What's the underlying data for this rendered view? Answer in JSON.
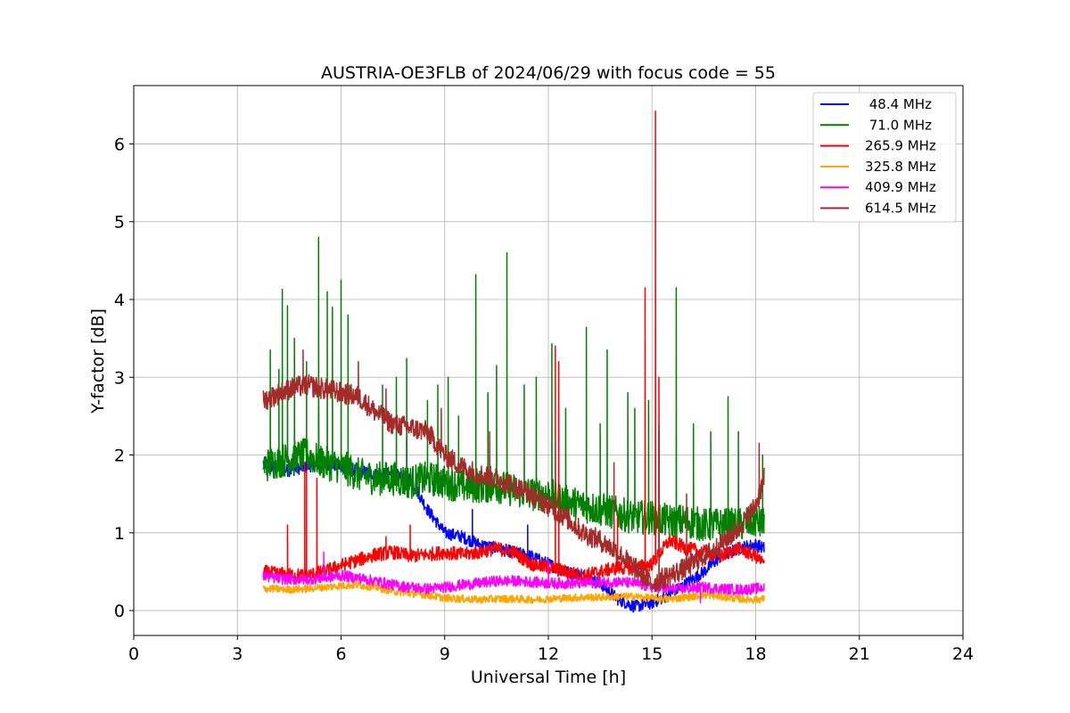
{
  "chart_data": {
    "type": "line",
    "title": "AUSTRIA-OE3FLB of 2024/06/29 with focus code = 55",
    "xlabel": "Universal Time [h]",
    "ylabel": "Y-factor [dB]",
    "xlim": [
      0,
      24
    ],
    "ylim": [
      -0.32,
      6.75
    ],
    "xticks": [
      0,
      3,
      6,
      9,
      12,
      15,
      18,
      21,
      24
    ],
    "yticks": [
      0,
      1,
      2,
      3,
      4,
      5,
      6
    ],
    "grid": true,
    "legend_position": "top-right",
    "series": [
      {
        "name": " 48.4 MHz",
        "color": "#0000ff",
        "x": [
          3.75,
          4,
          4.5,
          5,
          5.5,
          6,
          6.5,
          7,
          7.5,
          8,
          8.5,
          9,
          9.5,
          10,
          10.5,
          11,
          11.5,
          12,
          12.5,
          13,
          13.5,
          14,
          14.5,
          15,
          15.5,
          16,
          16.5,
          17,
          17.5,
          18,
          18.25
        ],
        "y": [
          1.9,
          1.85,
          1.8,
          1.85,
          1.9,
          1.85,
          1.8,
          1.75,
          1.75,
          1.7,
          1.3,
          1.0,
          0.95,
          0.85,
          0.8,
          0.75,
          0.7,
          0.6,
          0.5,
          0.45,
          0.35,
          0.15,
          0.05,
          0.1,
          0.2,
          0.35,
          0.5,
          0.7,
          0.8,
          0.85,
          0.8
        ],
        "spikes": [
          [
            5.35,
            2.6
          ],
          [
            7.9,
            2.2
          ],
          [
            9.8,
            1.3
          ],
          [
            11.4,
            1.1
          ]
        ]
      },
      {
        "name": " 71.0 MHz",
        "color": "#008000",
        "x": [
          3.75,
          4,
          4.5,
          5,
          5.5,
          6,
          6.5,
          7,
          7.5,
          8,
          8.5,
          9,
          9.5,
          10,
          10.5,
          11,
          11.5,
          12,
          12.5,
          13,
          13.5,
          14,
          14.5,
          15,
          15.5,
          16,
          16.5,
          17,
          17.5,
          18,
          18.25
        ],
        "y": [
          1.85,
          1.9,
          1.95,
          2.0,
          1.9,
          1.85,
          1.75,
          1.7,
          1.7,
          1.65,
          1.7,
          1.65,
          1.6,
          1.6,
          1.6,
          1.55,
          1.5,
          1.5,
          1.4,
          1.35,
          1.3,
          1.25,
          1.2,
          1.2,
          1.15,
          1.15,
          1.1,
          1.1,
          1.1,
          1.15,
          1.1
        ],
        "spikes": [
          [
            3.95,
            3.35
          ],
          [
            4.2,
            3.1
          ],
          [
            4.3,
            4.13
          ],
          [
            4.45,
            3.92
          ],
          [
            4.65,
            3.5
          ],
          [
            5.0,
            3.2
          ],
          [
            5.35,
            4.8
          ],
          [
            5.6,
            4.1
          ],
          [
            5.75,
            3.9
          ],
          [
            6.0,
            4.25
          ],
          [
            6.2,
            3.8
          ],
          [
            7.2,
            2.9
          ],
          [
            7.6,
            3.0
          ],
          [
            7.9,
            3.24
          ],
          [
            8.5,
            2.7
          ],
          [
            8.8,
            2.9
          ],
          [
            9.1,
            3.0
          ],
          [
            9.4,
            2.5
          ],
          [
            9.9,
            4.32
          ],
          [
            10.25,
            2.8
          ],
          [
            10.5,
            3.15
          ],
          [
            10.8,
            4.6
          ],
          [
            11.3,
            2.9
          ],
          [
            11.65,
            3.0
          ],
          [
            12.1,
            3.43
          ],
          [
            12.5,
            2.6
          ],
          [
            13.1,
            3.64
          ],
          [
            13.5,
            2.4
          ],
          [
            13.7,
            3.35
          ],
          [
            14.3,
            2.8
          ],
          [
            14.5,
            2.6
          ],
          [
            14.9,
            2.7
          ],
          [
            15.2,
            2.3
          ],
          [
            15.7,
            4.15
          ],
          [
            16.2,
            2.4
          ],
          [
            16.7,
            2.3
          ],
          [
            17.2,
            2.75
          ],
          [
            17.5,
            2.3
          ],
          [
            18.2,
            2.0
          ]
        ]
      },
      {
        "name": "265.9 MHz",
        "color": "#ff0000",
        "x": [
          3.75,
          4,
          4.5,
          5,
          5.5,
          6,
          6.5,
          7,
          7.5,
          8,
          8.5,
          9,
          9.5,
          10,
          10.5,
          11,
          11.5,
          12,
          12.5,
          13,
          13.5,
          14,
          14.5,
          15,
          15.5,
          16,
          16.5,
          17,
          17.5,
          18,
          18.25
        ],
        "y": [
          0.5,
          0.48,
          0.46,
          0.45,
          0.5,
          0.58,
          0.65,
          0.72,
          0.75,
          0.7,
          0.72,
          0.75,
          0.72,
          0.75,
          0.8,
          0.75,
          0.6,
          0.55,
          0.5,
          0.45,
          0.5,
          0.55,
          0.55,
          0.6,
          0.9,
          0.8,
          0.75,
          0.7,
          0.8,
          0.7,
          0.6
        ],
        "spikes": [
          [
            4.45,
            1.1
          ],
          [
            4.95,
            1.9
          ],
          [
            5.0,
            1.8
          ],
          [
            5.3,
            1.7
          ],
          [
            7.3,
            0.95
          ],
          [
            8.0,
            1.1
          ],
          [
            12.2,
            3.4
          ],
          [
            12.3,
            3.2
          ],
          [
            14.0,
            1.2
          ],
          [
            14.8,
            4.15
          ],
          [
            15.1,
            6.42
          ],
          [
            15.2,
            3.0
          ]
        ]
      },
      {
        "name": "325.8 MHz",
        "color": "#ffa500",
        "x": [
          3.75,
          4,
          4.5,
          5,
          5.5,
          6,
          6.5,
          7,
          7.5,
          8,
          8.5,
          9,
          9.5,
          10,
          10.5,
          11,
          11.5,
          12,
          12.5,
          13,
          13.5,
          14,
          14.5,
          15,
          15.5,
          16,
          16.5,
          17,
          17.5,
          18,
          18.25
        ],
        "y": [
          0.28,
          0.28,
          0.27,
          0.28,
          0.3,
          0.32,
          0.33,
          0.3,
          0.25,
          0.22,
          0.2,
          0.16,
          0.15,
          0.14,
          0.15,
          0.15,
          0.14,
          0.15,
          0.16,
          0.17,
          0.17,
          0.18,
          0.18,
          0.16,
          0.15,
          0.17,
          0.2,
          0.18,
          0.15,
          0.14,
          0.15
        ],
        "spikes": []
      },
      {
        "name": "409.9 MHz",
        "color": "#ff00ff",
        "x": [
          3.75,
          4,
          4.5,
          5,
          5.5,
          6,
          6.5,
          7,
          7.5,
          8,
          8.5,
          9,
          9.5,
          10,
          10.5,
          11,
          11.5,
          12,
          12.5,
          13,
          13.5,
          14,
          14.5,
          15,
          15.5,
          16,
          16.5,
          17,
          17.5,
          18,
          18.25
        ],
        "y": [
          0.45,
          0.42,
          0.4,
          0.4,
          0.42,
          0.45,
          0.42,
          0.38,
          0.33,
          0.3,
          0.28,
          0.3,
          0.33,
          0.35,
          0.38,
          0.38,
          0.37,
          0.35,
          0.35,
          0.35,
          0.36,
          0.37,
          0.35,
          0.3,
          0.28,
          0.28,
          0.3,
          0.28,
          0.27,
          0.28,
          0.3
        ],
        "spikes": [
          [
            5.5,
            0.75
          ],
          [
            12.0,
            0.65
          ],
          [
            16.4,
            0.1
          ]
        ]
      },
      {
        "name": "614.5 MHz",
        "color": "#a52a2a",
        "x": [
          3.75,
          4,
          4.5,
          5,
          5.5,
          6,
          6.5,
          7,
          7.5,
          8,
          8.5,
          9,
          9.5,
          10,
          10.5,
          11,
          11.5,
          12,
          12.5,
          13,
          13.5,
          14,
          14.5,
          15,
          15.5,
          16,
          16.5,
          17,
          17.5,
          18,
          18.25
        ],
        "y": [
          2.7,
          2.75,
          2.85,
          2.9,
          2.85,
          2.8,
          2.75,
          2.55,
          2.4,
          2.35,
          2.3,
          2.0,
          1.85,
          1.75,
          1.7,
          1.6,
          1.5,
          1.35,
          1.2,
          1.0,
          0.9,
          0.75,
          0.55,
          0.35,
          0.45,
          0.55,
          0.7,
          0.85,
          1.05,
          1.35,
          1.7
        ],
        "spikes": [
          [
            4.9,
            3.35
          ],
          [
            6.5,
            3.2
          ],
          [
            7.3,
            2.85
          ],
          [
            8.9,
            2.6
          ],
          [
            10.3,
            2.3
          ],
          [
            12.2,
            2.2
          ],
          [
            13.9,
            1.9
          ],
          [
            15.2,
            2.4
          ],
          [
            16.0,
            1.5
          ],
          [
            18.1,
            2.15
          ]
        ]
      }
    ]
  }
}
